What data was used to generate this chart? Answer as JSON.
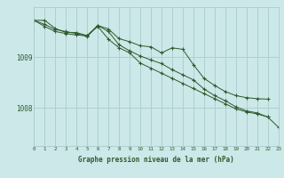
{
  "title": "Graphe pression niveau de la mer (hPa)",
  "background_color": "#cce8e8",
  "grid_color": "#aacccc",
  "line_color": "#2d5a2d",
  "hours": [
    0,
    1,
    2,
    3,
    4,
    5,
    6,
    7,
    8,
    9,
    10,
    11,
    12,
    13,
    14,
    15,
    16,
    17,
    18,
    19,
    20,
    21,
    22,
    23
  ],
  "series1": [
    1009.72,
    1009.72,
    1009.56,
    1009.48,
    1009.48,
    1009.42,
    1009.6,
    1009.35,
    1009.18,
    1009.08,
    1008.88,
    1008.78,
    1008.68,
    1008.58,
    1008.48,
    1008.38,
    1008.28,
    1008.18,
    1008.08,
    1007.98,
    1007.92,
    1007.88,
    1007.82,
    1007.62
  ],
  "series2": [
    1009.72,
    1009.6,
    1009.5,
    1009.46,
    1009.43,
    1009.42,
    1009.62,
    1009.55,
    1009.36,
    1009.3,
    1009.22,
    1009.2,
    1009.08,
    1009.18,
    1009.15,
    1008.85,
    1008.58,
    1008.44,
    1008.32,
    1008.24,
    1008.2,
    1008.18,
    1008.17,
    null
  ],
  "series3": [
    1009.72,
    1009.64,
    1009.54,
    1009.5,
    1009.46,
    1009.4,
    1009.62,
    1009.5,
    1009.24,
    1009.12,
    1009.02,
    1008.94,
    1008.87,
    1008.75,
    1008.65,
    1008.55,
    1008.37,
    1008.24,
    1008.14,
    1008.02,
    1007.94,
    1007.9,
    1007.82,
    null
  ],
  "ylim": [
    1007.25,
    1009.98
  ],
  "yticks": [
    1008.0,
    1009.0
  ],
  "xlim": [
    0,
    23
  ]
}
